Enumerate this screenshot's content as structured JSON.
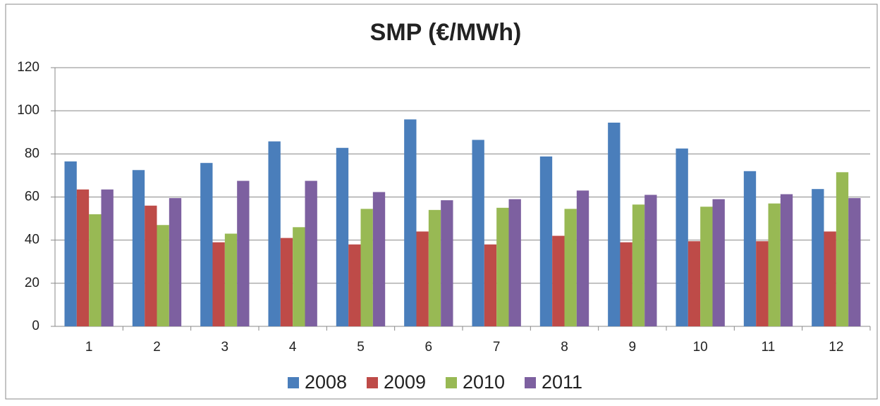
{
  "chart_data": {
    "type": "bar",
    "title": "SMP (€/MWh)",
    "categories": [
      "1",
      "2",
      "3",
      "4",
      "5",
      "6",
      "7",
      "8",
      "9",
      "10",
      "11",
      "12"
    ],
    "series": [
      {
        "name": "2008",
        "color": "#4a7ebb",
        "values": [
          76.5,
          72.5,
          75.8,
          85.8,
          82.8,
          96,
          86.5,
          78.8,
          94.5,
          82.5,
          72,
          63.7
        ]
      },
      {
        "name": "2009",
        "color": "#be4b48",
        "values": [
          63.5,
          56,
          39,
          41,
          38,
          44,
          38,
          42,
          39,
          39.5,
          39.5,
          44
        ]
      },
      {
        "name": "2010",
        "color": "#98b954",
        "values": [
          52,
          47,
          43,
          46,
          54.5,
          54,
          55,
          54.5,
          56.5,
          55.5,
          57,
          71.5
        ]
      },
      {
        "name": "2011",
        "color": "#7d60a0",
        "values": [
          63.5,
          59.5,
          67.5,
          67.5,
          62.3,
          58.5,
          59,
          63,
          61,
          59,
          61.3,
          59.5
        ]
      }
    ],
    "ylim": [
      0,
      120
    ],
    "yticks": [
      0,
      20,
      40,
      60,
      80,
      100,
      120
    ],
    "grid": true,
    "legend": "bottom"
  }
}
